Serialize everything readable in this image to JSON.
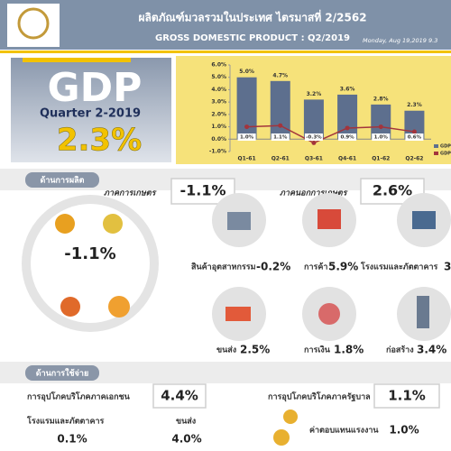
{
  "header": {
    "title": "ผลิตภัณฑ์มวลรวมในประเทศ ไตรมาสที่ 2/2562",
    "subtitle": "GROSS DOMESTIC PRODUCT : Q2/2019",
    "date": "Monday, Aug 19,2019 9.3"
  },
  "summary": {
    "title": "GDP",
    "period": "Quarter 2-2019",
    "value": "2.3%"
  },
  "chart_data": {
    "type": "bar",
    "categories": [
      "Q1-61",
      "Q2-61",
      "Q3-61",
      "Q4-61",
      "Q1-62",
      "Q2-62"
    ],
    "series": [
      {
        "name": "GDP",
        "type": "bar",
        "color": "#5d6f8e",
        "values": [
          5.0,
          4.7,
          3.2,
          3.6,
          2.8,
          2.3
        ],
        "value_labels": [
          "5.0%",
          "4.7%",
          "3.2%",
          "3.6%",
          "2.8%",
          "2.3%"
        ]
      },
      {
        "name": "GDP",
        "type": "line",
        "color": "#a3343c",
        "values": [
          1.0,
          1.1,
          -0.3,
          0.9,
          1.0,
          0.6
        ],
        "value_labels": [
          "1.0%",
          "1.1%",
          "-0.3%",
          "0.9%",
          "1.0%",
          "0.6%"
        ]
      }
    ],
    "ylim": [
      -1,
      6
    ],
    "yticks": [
      {
        "value": 6,
        "label": "6.0%"
      },
      {
        "value": 5,
        "label": "5.0%"
      },
      {
        "value": 4,
        "label": "4.0%"
      },
      {
        "value": 3,
        "label": "3.0%"
      },
      {
        "value": 2,
        "label": "2.0%"
      },
      {
        "value": 1,
        "label": "1.0%"
      },
      {
        "value": 0,
        "label": "0.0%"
      },
      {
        "value": -1,
        "label": "-1.0%"
      }
    ],
    "legend": "lower right"
  },
  "production": {
    "label": "ด้านการผลิต",
    "agriculture": {
      "label": "ภาคการเกษตร",
      "value": "-1.1%"
    },
    "non_agriculture": {
      "label": "ภาคนอกการเกษตร",
      "value": "2.6%",
      "items": [
        {
          "label": "สินค้าอุตสาหกรรม",
          "value": "-0.2%"
        },
        {
          "label": "การค้า",
          "value": "5.9%"
        },
        {
          "label": "โรงแรมและภัตตาคาร",
          "value": "3"
        },
        {
          "label": "ขนส่ง",
          "value": "2.5%"
        },
        {
          "label": "การเงิน",
          "value": "1.8%"
        },
        {
          "label": "ก่อสร้าง",
          "value": "3.4%"
        }
      ]
    }
  },
  "expenditure": {
    "label": "ด้านการใช้จ่าย",
    "private": {
      "label": "การอุปโภคบริโภคภาคเอกชน",
      "value": "4.4%",
      "items": [
        {
          "label": "โรงแรมและภัตตาคาร",
          "value": "0.1%"
        },
        {
          "label": "ขนส่ง",
          "value": "4.0%"
        }
      ]
    },
    "government": {
      "label": "การอุปโภคบริโภคภาครัฐบาล",
      "value": "1.1%",
      "items": [
        {
          "label": "ค่าตอบแทนแรงงาน",
          "value": "1.0%"
        }
      ]
    }
  }
}
